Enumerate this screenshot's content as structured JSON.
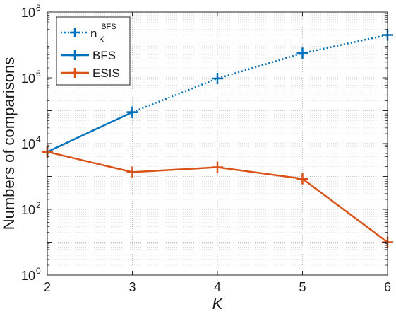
{
  "chart_data": {
    "type": "line",
    "xlabel": "K",
    "ylabel": "Numbers of comparisons",
    "x": [
      2,
      3,
      4,
      5,
      6
    ],
    "x_ticks": [
      "2",
      "3",
      "4",
      "5",
      "6"
    ],
    "xlim": [
      2,
      6
    ],
    "yscale": "log",
    "ylim": [
      1,
      100000000
    ],
    "y_ticks": [
      {
        "base": "10",
        "exp": "0",
        "value": 1
      },
      {
        "base": "10",
        "exp": "2",
        "value": 100
      },
      {
        "base": "10",
        "exp": "4",
        "value": 10000
      },
      {
        "base": "10",
        "exp": "6",
        "value": 1000000
      },
      {
        "base": "10",
        "exp": "8",
        "value": 100000000
      }
    ],
    "grid": true,
    "legend_position": "top-left",
    "series": [
      {
        "name": "BFS",
        "legend_text": "BFS",
        "color": "#0072BD",
        "style": "solid",
        "marker": "+",
        "x": [
          2,
          3
        ],
        "values": [
          5600,
          90000
        ]
      },
      {
        "name": "n_K^BFS",
        "legend_main": "n",
        "legend_sup": "BFS",
        "legend_sub": "K",
        "color": "#0072BD",
        "style": "dotted",
        "marker": "+",
        "x": [
          3,
          4,
          5,
          6
        ],
        "values": [
          90000,
          950000,
          5600000,
          20000000
        ]
      },
      {
        "name": "ESIS",
        "legend_text": "ESIS",
        "color": "#D95319",
        "style": "solid",
        "marker": "+",
        "x": [
          2,
          3,
          4,
          5,
          6
        ],
        "values": [
          5600,
          1350,
          1900,
          850,
          10
        ]
      }
    ]
  }
}
